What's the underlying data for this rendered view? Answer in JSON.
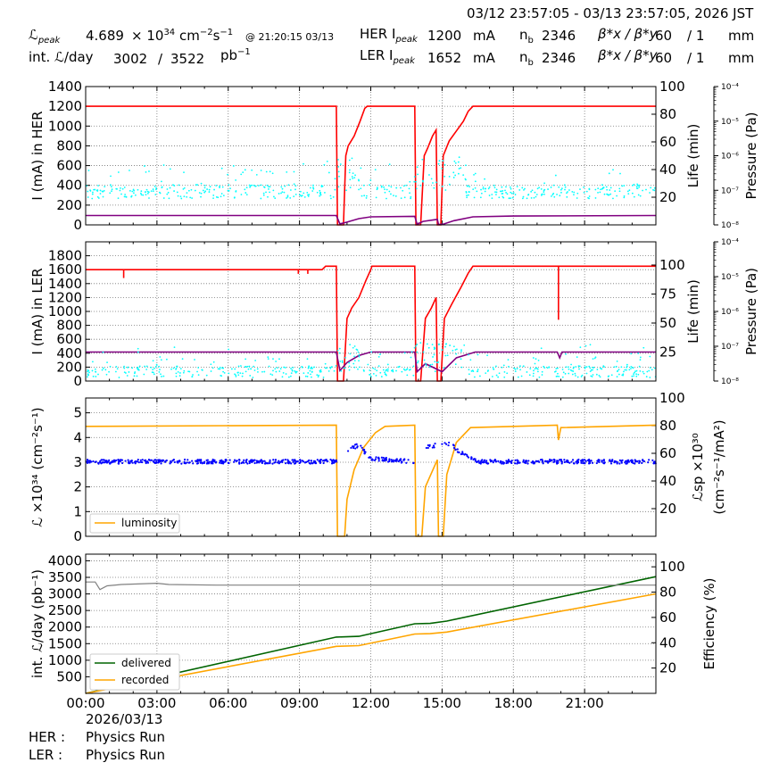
{
  "header": {
    "date_range": "03/12 23:57:05 - 03/13 23:57:05, 2026 JST",
    "lpeak_label": "ℒ",
    "lpeak_sub": "peak",
    "lpeak_value": "4.689",
    "lpeak_unit": "× 10",
    "lpeak_exp": "34",
    "lpeak_unit2": "cm",
    "lpeak_unit2_exp": "−2",
    "lpeak_unit3": "s",
    "lpeak_unit3_exp": "−1",
    "lpeak_at": "@ 21:20:15 03/13",
    "intl_label": "int. ℒ/day",
    "intl_value1": "3002",
    "intl_sep": "/",
    "intl_value2": "3522",
    "intl_unit": "pb",
    "intl_unit_exp": "−1",
    "her_label": "HER I",
    "her_sub": "peak",
    "her_value": "1200",
    "her_unit": "mA",
    "her_nb_label": "n",
    "her_nb_sub": "b",
    "her_nb_value": "2346",
    "her_beta_label": "β*x / β*y",
    "her_beta1": "60",
    "her_beta_sep": "/ 1",
    "her_beta_unit": "mm",
    "ler_label": "LER I",
    "ler_sub": "peak",
    "ler_value": "1652",
    "ler_unit": "mA",
    "ler_nb_label": "n",
    "ler_nb_sub": "b",
    "ler_nb_value": "2346",
    "ler_beta_label": "β*x / β*y",
    "ler_beta1": "60",
    "ler_beta_sep": "/ 1",
    "ler_beta_unit": "mm"
  },
  "footer": {
    "date": "2026/03/13",
    "her_label": "HER :",
    "her_status": "Physics Run",
    "ler_label": "LER :",
    "ler_status": "Physics Run"
  },
  "colors": {
    "current": "#ff0000",
    "life": "#800080",
    "pressure": "#00ffff",
    "luminosity": "#ffa500",
    "specific": "#0000ff",
    "delivered": "#006400",
    "recorded": "#ffa500",
    "efficiency": "#808080"
  },
  "chart_data": [
    {
      "type": "line",
      "name": "HER",
      "ylabel": "I (mA) in HER",
      "ylim": [
        0,
        1400
      ],
      "yticks": [
        0,
        200,
        400,
        600,
        800,
        1000,
        1200,
        1400
      ],
      "y2label": "Life (min)",
      "y2lim": [
        0,
        100
      ],
      "y2ticks": [
        20,
        40,
        60,
        80,
        100
      ],
      "y3label": "Pressure (Pa)",
      "y3ticks": [
        "10⁻⁸",
        "10⁻⁷",
        "10⁻⁶",
        "10⁻⁵",
        "10⁻⁴"
      ],
      "xlim": [
        0,
        24
      ],
      "grid": true,
      "series": [
        {
          "role": "current",
          "axis": "left",
          "points": [
            [
              0,
              1200
            ],
            [
              10.55,
              1200
            ],
            [
              10.6,
              0
            ],
            [
              10.85,
              0
            ],
            [
              10.95,
              700
            ],
            [
              11.05,
              800
            ],
            [
              11.3,
              900
            ],
            [
              11.55,
              1050
            ],
            [
              11.75,
              1180
            ],
            [
              11.85,
              1200
            ],
            [
              13.85,
              1200
            ],
            [
              13.9,
              0
            ],
            [
              14.1,
              0
            ],
            [
              14.25,
              700
            ],
            [
              14.4,
              780
            ],
            [
              14.6,
              900
            ],
            [
              14.75,
              960
            ],
            [
              14.8,
              0
            ],
            [
              14.95,
              0
            ],
            [
              15.05,
              700
            ],
            [
              15.3,
              850
            ],
            [
              15.6,
              950
            ],
            [
              15.9,
              1050
            ],
            [
              16.1,
              1150
            ],
            [
              16.3,
              1200
            ],
            [
              24,
              1200
            ]
          ]
        },
        {
          "role": "life",
          "axis": "right",
          "points": [
            [
              0,
              6.8
            ],
            [
              10.55,
              6.8
            ],
            [
              10.7,
              0.7
            ],
            [
              11.0,
              2
            ],
            [
              11.5,
              4.5
            ],
            [
              12.0,
              5.8
            ],
            [
              13.85,
              6.2
            ],
            [
              13.95,
              0.5
            ],
            [
              14.2,
              2.5
            ],
            [
              14.8,
              4
            ],
            [
              14.85,
              0.3
            ],
            [
              15.05,
              0.5
            ],
            [
              15.5,
              3
            ],
            [
              16.3,
              5.8
            ],
            [
              18,
              6.4
            ],
            [
              24,
              6.8
            ]
          ]
        },
        {
          "role": "pressure",
          "axis": "right3",
          "scatter": true,
          "level": 24
        }
      ]
    },
    {
      "type": "line",
      "name": "LER",
      "ylabel": "I (mA) in LER",
      "ylim": [
        0,
        2000
      ],
      "yticks": [
        0,
        200,
        400,
        600,
        800,
        1000,
        1200,
        1400,
        1600,
        1800
      ],
      "y2label": "Life (min)",
      "y2lim": [
        0,
        120
      ],
      "y2ticks": [
        25,
        50,
        75,
        100
      ],
      "y3label": "Pressure (Pa)",
      "y3ticks": [
        "10⁻⁸",
        "10⁻⁷",
        "10⁻⁶",
        "10⁻⁵",
        "10⁻⁴"
      ],
      "xlim": [
        0,
        24
      ],
      "grid": true,
      "series": [
        {
          "role": "current",
          "axis": "left",
          "points": [
            [
              0,
              1600
            ],
            [
              9.95,
              1600
            ],
            [
              10.1,
              1650
            ],
            [
              10.55,
              1650
            ],
            [
              10.6,
              0
            ],
            [
              10.85,
              0
            ],
            [
              11.0,
              900
            ],
            [
              11.2,
              1050
            ],
            [
              11.5,
              1200
            ],
            [
              11.8,
              1450
            ],
            [
              12.0,
              1600
            ],
            [
              12.05,
              1650
            ],
            [
              13.85,
              1650
            ],
            [
              13.9,
              0
            ],
            [
              14.1,
              0
            ],
            [
              14.3,
              900
            ],
            [
              14.55,
              1050
            ],
            [
              14.75,
              1200
            ],
            [
              14.8,
              0
            ],
            [
              14.95,
              0
            ],
            [
              15.1,
              900
            ],
            [
              15.4,
              1100
            ],
            [
              15.8,
              1350
            ],
            [
              16.1,
              1550
            ],
            [
              16.3,
              1650
            ],
            [
              24,
              1650
            ]
          ],
          "dips": [
            [
              1.6,
              1480
            ],
            [
              8.95,
              1540
            ],
            [
              9.35,
              1540
            ],
            [
              19.9,
              880
            ]
          ]
        },
        {
          "role": "life",
          "axis": "right",
          "points": [
            [
              0,
              25
            ],
            [
              10.55,
              25
            ],
            [
              10.7,
              9
            ],
            [
              11.0,
              16
            ],
            [
              11.5,
              22
            ],
            [
              12.0,
              25
            ],
            [
              13.85,
              25
            ],
            [
              13.95,
              8
            ],
            [
              14.3,
              15
            ],
            [
              14.8,
              10
            ],
            [
              15.0,
              8
            ],
            [
              15.6,
              20
            ],
            [
              16.4,
              25
            ],
            [
              19.85,
              25
            ],
            [
              19.95,
              20
            ],
            [
              20.05,
              25
            ],
            [
              24,
              25
            ]
          ]
        },
        {
          "role": "pressure",
          "axis": "right3",
          "scatter": true,
          "level": 8
        }
      ]
    },
    {
      "type": "line",
      "name": "Luminosity",
      "ylabel": "ℒ ×10³⁴ (cm⁻²s⁻¹)",
      "ylim": [
        0,
        5.6
      ],
      "yticks": [
        0,
        1,
        2,
        3,
        4,
        5
      ],
      "y2label": "ℒsp ×10³⁰ (cm⁻²s⁻¹/mA²)",
      "y2lim": [
        0,
        100
      ],
      "y2ticks": [
        20,
        40,
        60,
        80,
        100
      ],
      "xlim": [
        0,
        24
      ],
      "grid": true,
      "legend": {
        "location": "bottom-left",
        "entries": [
          "luminosity"
        ]
      },
      "series": [
        {
          "name": "luminosity",
          "role": "luminosity",
          "axis": "left",
          "points": [
            [
              0,
              4.45
            ],
            [
              10.55,
              4.5
            ],
            [
              10.6,
              0
            ],
            [
              10.9,
              0
            ],
            [
              11.0,
              1.5
            ],
            [
              11.3,
              2.7
            ],
            [
              11.7,
              3.6
            ],
            [
              12.2,
              4.2
            ],
            [
              12.6,
              4.45
            ],
            [
              13.85,
              4.5
            ],
            [
              13.9,
              0
            ],
            [
              14.15,
              0
            ],
            [
              14.3,
              2
            ],
            [
              14.8,
              3.1
            ],
            [
              14.85,
              0
            ],
            [
              15.05,
              0
            ],
            [
              15.2,
              2.5
            ],
            [
              15.6,
              3.8
            ],
            [
              16.2,
              4.4
            ],
            [
              19.85,
              4.5
            ],
            [
              19.9,
              3.9
            ],
            [
              20.0,
              4.4
            ],
            [
              24,
              4.5
            ]
          ]
        },
        {
          "name": "specific",
          "role": "specific",
          "axis": "right",
          "scatter": true,
          "points": [
            [
              0,
              54
            ],
            [
              10.55,
              54
            ],
            [
              11.0,
              62
            ],
            [
              11.5,
              66
            ],
            [
              12.0,
              56
            ],
            [
              13.85,
              54
            ],
            [
              14.3,
              65
            ],
            [
              14.8,
              66
            ],
            [
              15.3,
              67
            ],
            [
              16.0,
              58
            ],
            [
              16.6,
              54
            ],
            [
              24,
              54
            ]
          ]
        }
      ]
    },
    {
      "type": "line",
      "name": "Integrated",
      "ylabel": "int. ℒ/day (pb⁻¹)",
      "ylim": [
        0,
        4200
      ],
      "yticks": [
        500,
        1000,
        1500,
        2000,
        2500,
        3000,
        3500,
        4000
      ],
      "y2label": "Efficiency (%)",
      "y2lim": [
        0,
        110
      ],
      "y2ticks": [
        20,
        40,
        60,
        80,
        100
      ],
      "xlim": [
        0,
        24
      ],
      "xticks": [
        "00:00",
        "03:00",
        "06:00",
        "09:00",
        "12:00",
        "15:00",
        "18:00",
        "21:00"
      ],
      "grid": true,
      "legend": {
        "location": "bottom-left",
        "entries": [
          "delivered",
          "recorded"
        ]
      },
      "series": [
        {
          "name": "delivered",
          "role": "delivered",
          "axis": "left",
          "points": [
            [
              0,
              0
            ],
            [
              10.55,
              1700
            ],
            [
              11.5,
              1720
            ],
            [
              13.85,
              2100
            ],
            [
              14.5,
              2110
            ],
            [
              15.2,
              2180
            ],
            [
              24,
              3522
            ]
          ]
        },
        {
          "name": "recorded",
          "role": "recorded",
          "axis": "left",
          "points": [
            [
              0,
              0
            ],
            [
              10.55,
              1420
            ],
            [
              11.5,
              1440
            ],
            [
              13.85,
              1790
            ],
            [
              14.5,
              1800
            ],
            [
              15.2,
              1850
            ],
            [
              24,
              3002
            ]
          ]
        },
        {
          "name": "efficiency",
          "role": "efficiency",
          "axis": "right",
          "points": [
            [
              0,
              88
            ],
            [
              0.4,
              88
            ],
            [
              0.6,
              82
            ],
            [
              0.9,
              85
            ],
            [
              1.5,
              86
            ],
            [
              3,
              87
            ],
            [
              3.5,
              86
            ],
            [
              5.5,
              85.5
            ],
            [
              24,
              85.5
            ]
          ]
        }
      ]
    }
  ]
}
